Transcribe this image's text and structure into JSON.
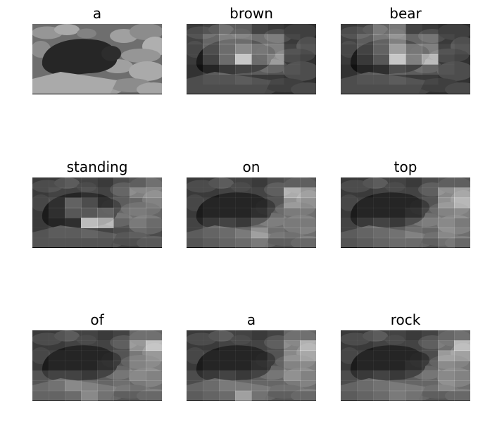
{
  "figure": {
    "panels": [
      {
        "title": "a"
      },
      {
        "title": "brown"
      },
      {
        "title": "bear"
      },
      {
        "title": "standing"
      },
      {
        "title": "on"
      },
      {
        "title": "top"
      },
      {
        "title": "of"
      },
      {
        "title": "a"
      },
      {
        "title": "rock"
      }
    ],
    "attention_grid": {
      "rows": 7,
      "cols": 8
    },
    "attention_maps": [
      null,
      [
        [
          0.05,
          0.1,
          0.25,
          0.25,
          0.1,
          0.05,
          0.0,
          0.0
        ],
        [
          0.1,
          0.3,
          0.45,
          0.45,
          0.35,
          0.35,
          0.05,
          0.0
        ],
        [
          0.05,
          0.3,
          0.45,
          0.6,
          0.5,
          0.45,
          0.1,
          0.05
        ],
        [
          0.05,
          0.25,
          0.45,
          0.9,
          0.45,
          0.55,
          0.05,
          0.0
        ],
        [
          0.0,
          0.1,
          0.2,
          0.25,
          0.25,
          0.2,
          0.05,
          0.0
        ],
        [
          0.0,
          0.05,
          0.05,
          0.1,
          0.05,
          0.05,
          0.0,
          0.0
        ],
        [
          0.0,
          0.0,
          0.0,
          0.0,
          0.0,
          0.0,
          0.0,
          0.0
        ]
      ],
      [
        [
          0.05,
          0.1,
          0.3,
          0.4,
          0.1,
          0.05,
          0.0,
          0.0
        ],
        [
          0.1,
          0.25,
          0.4,
          0.55,
          0.3,
          0.3,
          0.05,
          0.0
        ],
        [
          0.05,
          0.25,
          0.4,
          0.7,
          0.5,
          0.45,
          0.1,
          0.05
        ],
        [
          0.05,
          0.2,
          0.35,
          0.9,
          0.55,
          0.75,
          0.05,
          0.0
        ],
        [
          0.0,
          0.1,
          0.15,
          0.3,
          0.25,
          0.2,
          0.05,
          0.0
        ],
        [
          0.0,
          0.05,
          0.05,
          0.1,
          0.05,
          0.05,
          0.0,
          0.0
        ],
        [
          0.0,
          0.0,
          0.0,
          0.0,
          0.0,
          0.0,
          0.0,
          0.0
        ]
      ],
      [
        [
          0.05,
          0.05,
          0.1,
          0.1,
          0.05,
          0.15,
          0.2,
          0.3
        ],
        [
          0.05,
          0.1,
          0.1,
          0.15,
          0.1,
          0.2,
          0.45,
          0.45
        ],
        [
          0.05,
          0.15,
          0.4,
          0.3,
          0.15,
          0.25,
          0.3,
          0.35
        ],
        [
          0.05,
          0.15,
          0.35,
          0.35,
          0.4,
          0.3,
          0.35,
          0.3
        ],
        [
          0.05,
          0.1,
          0.15,
          0.85,
          0.75,
          0.2,
          0.3,
          0.2
        ],
        [
          0.05,
          0.1,
          0.1,
          0.15,
          0.1,
          0.15,
          0.2,
          0.15
        ],
        [
          0.05,
          0.05,
          0.05,
          0.05,
          0.05,
          0.1,
          0.1,
          0.1
        ]
      ],
      [
        [
          0.05,
          0.05,
          0.1,
          0.1,
          0.05,
          0.15,
          0.2,
          0.2
        ],
        [
          0.05,
          0.05,
          0.1,
          0.1,
          0.1,
          0.15,
          0.7,
          0.55
        ],
        [
          0.05,
          0.1,
          0.1,
          0.1,
          0.1,
          0.2,
          0.55,
          0.45
        ],
        [
          0.05,
          0.1,
          0.1,
          0.1,
          0.15,
          0.25,
          0.35,
          0.35
        ],
        [
          0.1,
          0.2,
          0.25,
          0.2,
          0.35,
          0.35,
          0.3,
          0.3
        ],
        [
          0.1,
          0.15,
          0.2,
          0.3,
          0.55,
          0.35,
          0.3,
          0.35
        ],
        [
          0.05,
          0.1,
          0.15,
          0.2,
          0.3,
          0.2,
          0.2,
          0.2
        ]
      ],
      [
        [
          0.05,
          0.05,
          0.1,
          0.1,
          0.05,
          0.15,
          0.2,
          0.2
        ],
        [
          0.05,
          0.05,
          0.1,
          0.1,
          0.1,
          0.15,
          0.5,
          0.6
        ],
        [
          0.05,
          0.1,
          0.1,
          0.1,
          0.1,
          0.2,
          0.55,
          0.7
        ],
        [
          0.05,
          0.1,
          0.1,
          0.1,
          0.15,
          0.25,
          0.4,
          0.45
        ],
        [
          0.1,
          0.2,
          0.25,
          0.2,
          0.3,
          0.35,
          0.4,
          0.3
        ],
        [
          0.1,
          0.15,
          0.2,
          0.25,
          0.35,
          0.3,
          0.45,
          0.35
        ],
        [
          0.05,
          0.1,
          0.15,
          0.2,
          0.2,
          0.2,
          0.3,
          0.2
        ]
      ],
      [
        [
          0.05,
          0.05,
          0.1,
          0.1,
          0.05,
          0.1,
          0.3,
          0.3
        ],
        [
          0.05,
          0.05,
          0.1,
          0.1,
          0.1,
          0.15,
          0.55,
          0.8
        ],
        [
          0.05,
          0.1,
          0.1,
          0.1,
          0.1,
          0.2,
          0.4,
          0.5
        ],
        [
          0.05,
          0.1,
          0.1,
          0.1,
          0.15,
          0.2,
          0.4,
          0.45
        ],
        [
          0.2,
          0.25,
          0.25,
          0.2,
          0.25,
          0.3,
          0.4,
          0.35
        ],
        [
          0.2,
          0.25,
          0.4,
          0.35,
          0.3,
          0.35,
          0.3,
          0.35
        ],
        [
          0.15,
          0.15,
          0.2,
          0.4,
          0.25,
          0.2,
          0.2,
          0.2
        ]
      ],
      [
        [
          0.05,
          0.05,
          0.1,
          0.1,
          0.05,
          0.1,
          0.3,
          0.3
        ],
        [
          0.05,
          0.05,
          0.1,
          0.1,
          0.1,
          0.15,
          0.45,
          0.7
        ],
        [
          0.05,
          0.1,
          0.1,
          0.1,
          0.1,
          0.2,
          0.5,
          0.6
        ],
        [
          0.05,
          0.1,
          0.1,
          0.1,
          0.15,
          0.2,
          0.4,
          0.45
        ],
        [
          0.15,
          0.2,
          0.25,
          0.2,
          0.25,
          0.3,
          0.45,
          0.35
        ],
        [
          0.15,
          0.2,
          0.3,
          0.3,
          0.3,
          0.3,
          0.3,
          0.35
        ],
        [
          0.1,
          0.15,
          0.2,
          0.55,
          0.25,
          0.2,
          0.2,
          0.2
        ]
      ],
      [
        [
          0.05,
          0.05,
          0.1,
          0.1,
          0.05,
          0.1,
          0.25,
          0.3
        ],
        [
          0.05,
          0.05,
          0.1,
          0.1,
          0.1,
          0.15,
          0.35,
          0.75
        ],
        [
          0.05,
          0.1,
          0.1,
          0.1,
          0.1,
          0.15,
          0.6,
          0.55
        ],
        [
          0.05,
          0.1,
          0.1,
          0.1,
          0.15,
          0.2,
          0.45,
          0.4
        ],
        [
          0.15,
          0.2,
          0.25,
          0.2,
          0.25,
          0.3,
          0.4,
          0.35
        ],
        [
          0.15,
          0.2,
          0.25,
          0.3,
          0.3,
          0.3,
          0.45,
          0.35
        ],
        [
          0.1,
          0.15,
          0.2,
          0.3,
          0.25,
          0.2,
          0.2,
          0.2
        ]
      ]
    ]
  }
}
